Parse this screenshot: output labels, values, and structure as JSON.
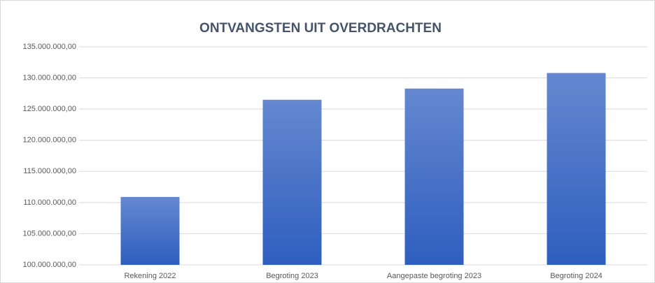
{
  "chart_data": {
    "type": "bar",
    "title": "ONTVANGSTEN UIT OVERDRACHTEN",
    "categories": [
      "Rekening 2022",
      "Begroting 2023",
      "Aangepaste begroting 2023",
      "Begroting 2024"
    ],
    "values": [
      110900000,
      126500000,
      128300000,
      130800000
    ],
    "color": "#4472c4",
    "ylim": [
      100000000,
      135000000
    ],
    "yticks": [
      {
        "value": 100000000,
        "label": "100.000.000,00"
      },
      {
        "value": 105000000,
        "label": "105.000.000,00"
      },
      {
        "value": 110000000,
        "label": "110.000.000,00"
      },
      {
        "value": 115000000,
        "label": "115.000.000,00"
      },
      {
        "value": 120000000,
        "label": "120.000.000,00"
      },
      {
        "value": 125000000,
        "label": "125.000.000,00"
      },
      {
        "value": 130000000,
        "label": "130.000.000,00"
      },
      {
        "value": 135000000,
        "label": "135.000.000,00"
      }
    ],
    "grid": true
  }
}
